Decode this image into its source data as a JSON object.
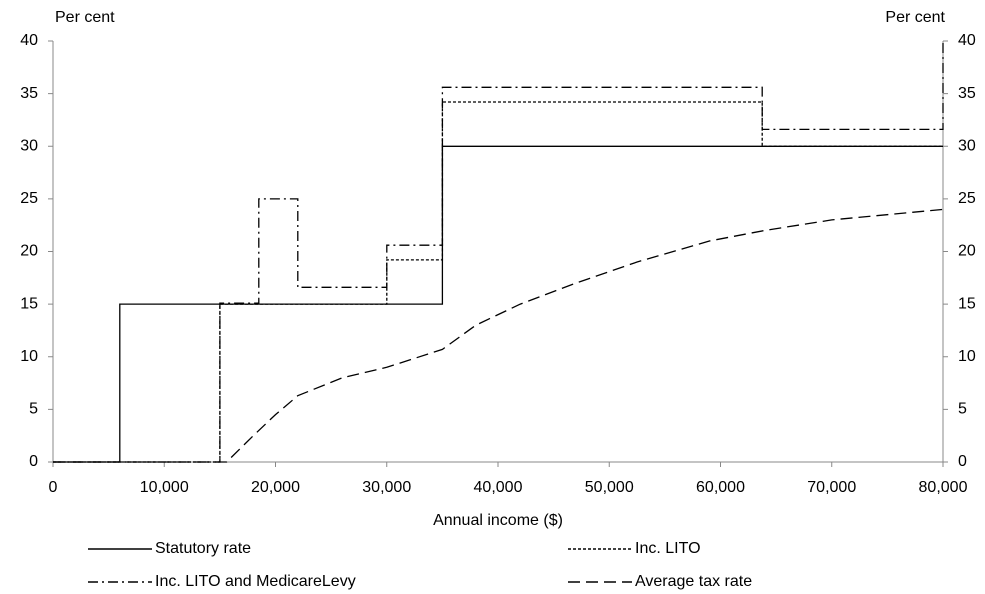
{
  "chart_data": {
    "type": "line",
    "y_label": "Per cent",
    "y2_label": "Per cent",
    "x_label": "Annual income ($)",
    "xlim": [
      0,
      80000
    ],
    "xticks": [
      0,
      {
        "value": 10000,
        "label": "10,000"
      },
      {
        "value": 20000,
        "label": "20,000"
      },
      {
        "value": 30000,
        "label": "30,000"
      },
      {
        "value": 40000,
        "label": "40,000"
      },
      {
        "value": 50000,
        "label": "50,000"
      },
      {
        "value": 60000,
        "label": "60,000"
      },
      {
        "value": 70000,
        "label": "70,000"
      },
      {
        "value": 80000,
        "label": "80,000"
      }
    ],
    "ylim": [
      0,
      40
    ],
    "yticks": [
      0,
      5,
      10,
      15,
      20,
      25,
      30,
      35,
      40
    ],
    "y2lim": [
      0,
      40
    ],
    "y2ticks": [
      0,
      5,
      10,
      15,
      20,
      25,
      30,
      35,
      40
    ],
    "series": [
      {
        "name": "Statutory rate",
        "color": "#000000",
        "style": "solid",
        "x": [
          0,
          6000,
          6000,
          35000,
          35000,
          80000
        ],
        "values": [
          0,
          0,
          15,
          15,
          30,
          30
        ]
      },
      {
        "name": "Inc. LITO",
        "color": "#000000",
        "style": "dotted",
        "x": [
          0,
          15000,
          15000,
          30000,
          30000,
          35000,
          35000,
          63750,
          63750,
          80000
        ],
        "values": [
          0,
          0,
          15,
          15,
          19.2,
          19.2,
          34.2,
          34.2,
          30,
          30
        ]
      },
      {
        "name": "Inc. LITO and MedicareLevy",
        "color": "#000000",
        "style": "dashdot",
        "x": [
          0,
          15000,
          15000,
          18500,
          18500,
          22000,
          22000,
          30000,
          30000,
          35000,
          35000,
          63750,
          63750,
          80000,
          80000
        ],
        "values": [
          0,
          0,
          15.1,
          15.1,
          25,
          25,
          16.6,
          16.6,
          20.6,
          20.6,
          35.6,
          35.6,
          31.6,
          31.6,
          40
        ]
      },
      {
        "name": "Average tax rate",
        "color": "#000000",
        "style": "dashed",
        "x": [
          0,
          15000,
          15600,
          18000,
          20000,
          22000,
          26000,
          30000,
          35000,
          38000,
          42000,
          47000,
          52500,
          59000,
          64000,
          70000,
          80000
        ],
        "values": [
          0,
          0,
          0,
          2.5,
          4.5,
          6.3,
          8,
          9,
          10.7,
          13,
          15,
          17,
          19,
          21,
          22,
          23,
          24
        ]
      }
    ]
  }
}
